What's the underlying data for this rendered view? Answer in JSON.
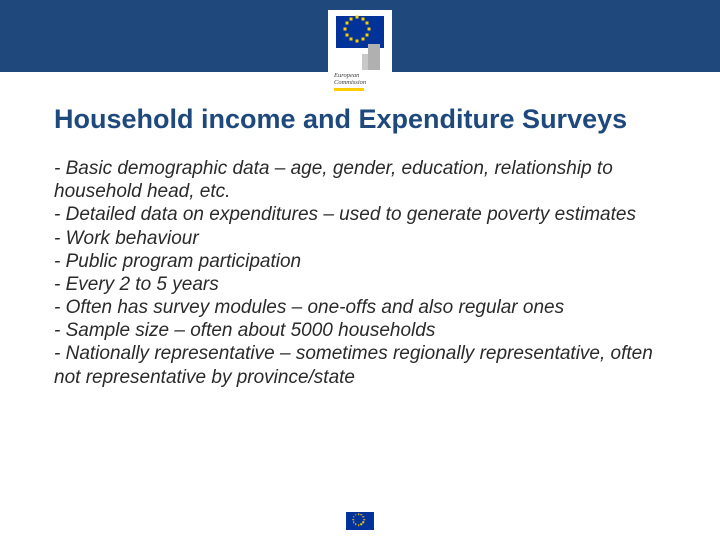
{
  "colors": {
    "header_band": "#1f497d",
    "title_color": "#1f497d",
    "body_text": "#2a2a2a",
    "flag_blue": "#003399",
    "flag_star": "#ffcc00",
    "background": "#ffffff",
    "building_gray": "#b0b0b0"
  },
  "typography": {
    "title_fontsize": 27,
    "title_weight": "bold",
    "body_fontsize": 19,
    "body_style": "italic",
    "font_family": "Verdana"
  },
  "logo": {
    "line1": "European",
    "line2": "Commission"
  },
  "title": "Household income and Expenditure Surveys",
  "bullets": [
    "- Basic demographic data – age, gender, education, relationship to household head, etc.",
    "- Detailed data on expenditures – used to generate poverty estimates",
    "- Work behaviour",
    "- Public program participation",
    "- Every 2 to 5 years",
    "- Often has survey modules – one-offs and also regular ones",
    "- Sample size – often about 5000 households",
    "- Nationally representative – sometimes regionally representative, often not representative by province/state"
  ]
}
